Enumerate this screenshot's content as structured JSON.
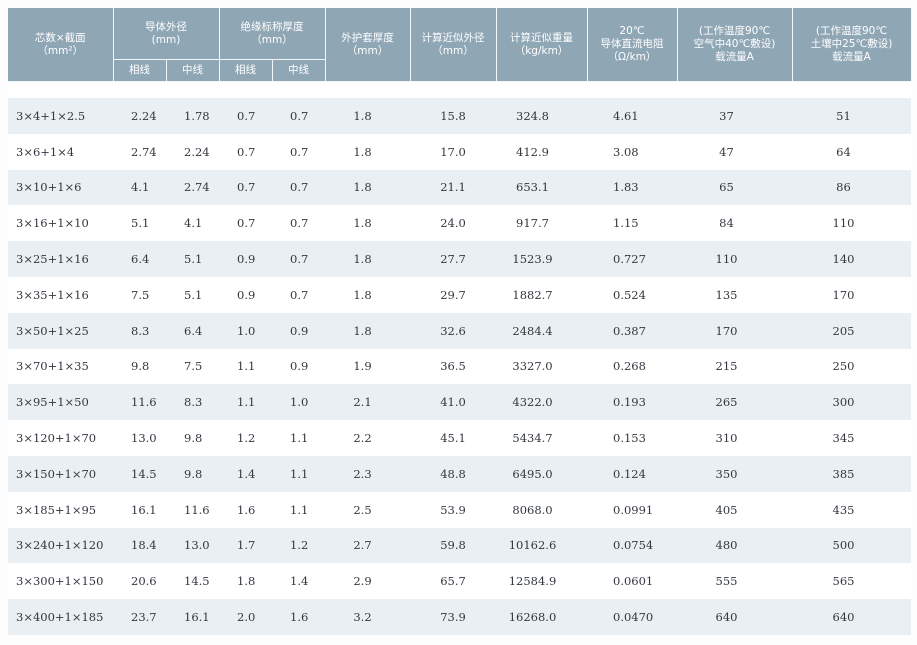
{
  "header": {
    "core_section": [
      "芯数×截面",
      "（mm²）"
    ],
    "conductor_diameter": [
      "导体外径",
      "(mm)"
    ],
    "insulation_thickness": [
      "绝缘标称厚度",
      "（mm）"
    ],
    "sub_phase": "相线",
    "sub_neutral": "中线",
    "sheath_thickness": [
      "外护套厚度",
      "（mm）"
    ],
    "outer_diameter": [
      "计算近似外径",
      "（mm）"
    ],
    "weight": [
      "计算近似重量",
      "（kg/km）"
    ],
    "resistance": [
      "20℃",
      "导体直流电阻",
      "（Ω/km）"
    ],
    "ampacity_air": [
      "(工作温度90℃",
      "空气中40℃敷设)",
      "载流量A"
    ],
    "ampacity_soil": [
      "(工作温度90℃",
      "土壤中25℃敷设)",
      "载流量A"
    ]
  },
  "rows": [
    [
      "3×4+1×2.5",
      "2.24",
      "1.78",
      "0.7",
      "0.7",
      "1.8",
      "15.8",
      "324.8",
      "4.61",
      "37",
      "51"
    ],
    [
      "3×6+1×4",
      "2.74",
      "2.24",
      "0.7",
      "0.7",
      "1.8",
      "17.0",
      "412.9",
      "3.08",
      "47",
      "64"
    ],
    [
      "3×10+1×6",
      "4.1",
      "2.74",
      "0.7",
      "0.7",
      "1.8",
      "21.1",
      "653.1",
      "1.83",
      "65",
      "86"
    ],
    [
      "3×16+1×10",
      "5.1",
      "4.1",
      "0.7",
      "0.7",
      "1.8",
      "24.0",
      "917.7",
      "1.15",
      "84",
      "110"
    ],
    [
      "3×25+1×16",
      "6.4",
      "5.1",
      "0.9",
      "0.7",
      "1.8",
      "27.7",
      "1523.9",
      "0.727",
      "110",
      "140"
    ],
    [
      "3×35+1×16",
      "7.5",
      "5.1",
      "0.9",
      "0.7",
      "1.8",
      "29.7",
      "1882.7",
      "0.524",
      "135",
      "170"
    ],
    [
      "3×50+1×25",
      "8.3",
      "6.4",
      "1.0",
      "0.9",
      "1.8",
      "32.6",
      "2484.4",
      "0.387",
      "170",
      "205"
    ],
    [
      "3×70+1×35",
      "9.8",
      "7.5",
      "1.1",
      "0.9",
      "1.9",
      "36.5",
      "3327.0",
      "0.268",
      "215",
      "250"
    ],
    [
      "3×95+1×50",
      "11.6",
      "8.3",
      "1.1",
      "1.0",
      "2.1",
      "41.0",
      "4322.0",
      "0.193",
      "265",
      "300"
    ],
    [
      "3×120+1×70",
      "13.0",
      "9.8",
      "1.2",
      "1.1",
      "2.2",
      "45.1",
      "5434.7",
      "0.153",
      "310",
      "345"
    ],
    [
      "3×150+1×70",
      "14.5",
      "9.8",
      "1.4",
      "1.1",
      "2.3",
      "48.8",
      "6495.0",
      "0.124",
      "350",
      "385"
    ],
    [
      "3×185+1×95",
      "16.1",
      "11.6",
      "1.6",
      "1.1",
      "2.5",
      "53.9",
      "8068.0",
      "0.0991",
      "405",
      "435"
    ],
    [
      "3×240+1×120",
      "18.4",
      "13.0",
      "1.7",
      "1.2",
      "2.7",
      "59.8",
      "10162.6",
      "0.0754",
      "480",
      "500"
    ],
    [
      "3×300+1×150",
      "20.6",
      "14.5",
      "1.8",
      "1.4",
      "2.9",
      "65.7",
      "12584.9",
      "0.0601",
      "555",
      "565"
    ],
    [
      "3×400+1×185",
      "23.7",
      "16.1",
      "2.0",
      "1.6",
      "3.2",
      "73.9",
      "16268.0",
      "0.0470",
      "640",
      "640"
    ]
  ]
}
